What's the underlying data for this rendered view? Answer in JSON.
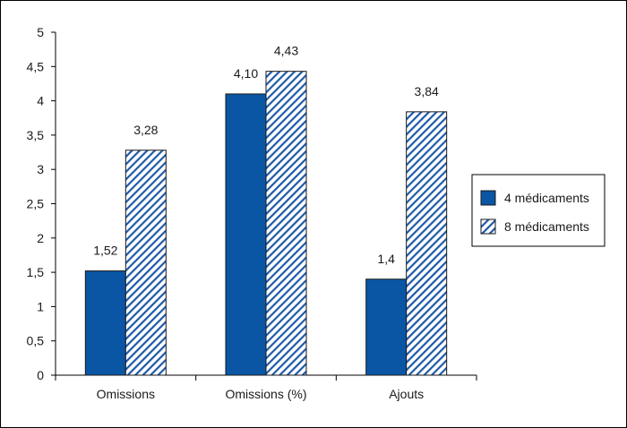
{
  "chart_data": {
    "type": "bar",
    "categories": [
      "Omissions",
      "Omissions (%)",
      "Ajouts"
    ],
    "series": [
      {
        "name": "4 médicaments",
        "values": [
          1.52,
          4.1,
          1.4
        ],
        "labels": [
          "1,52",
          "4,10",
          "1,4"
        ],
        "color": "#0a56a5",
        "pattern": "solid"
      },
      {
        "name": "8 médicaments",
        "values": [
          3.28,
          4.43,
          3.84
        ],
        "labels": [
          "3,28",
          "4,43",
          "3,84"
        ],
        "color": "#1f5aa8",
        "pattern": "diagonal-hatch"
      }
    ],
    "ylim": [
      0,
      5
    ],
    "yticks": [
      0,
      0.5,
      1,
      1.5,
      2,
      2.5,
      3,
      3.5,
      4,
      4.5,
      5
    ],
    "ytick_labels": [
      "0",
      "0,5",
      "1",
      "1,5",
      "2",
      "2,5",
      "3",
      "3,5",
      "4",
      "4,5",
      "5"
    ],
    "title": "",
    "xlabel": "",
    "ylabel": "",
    "grid": false,
    "legend": "right"
  }
}
